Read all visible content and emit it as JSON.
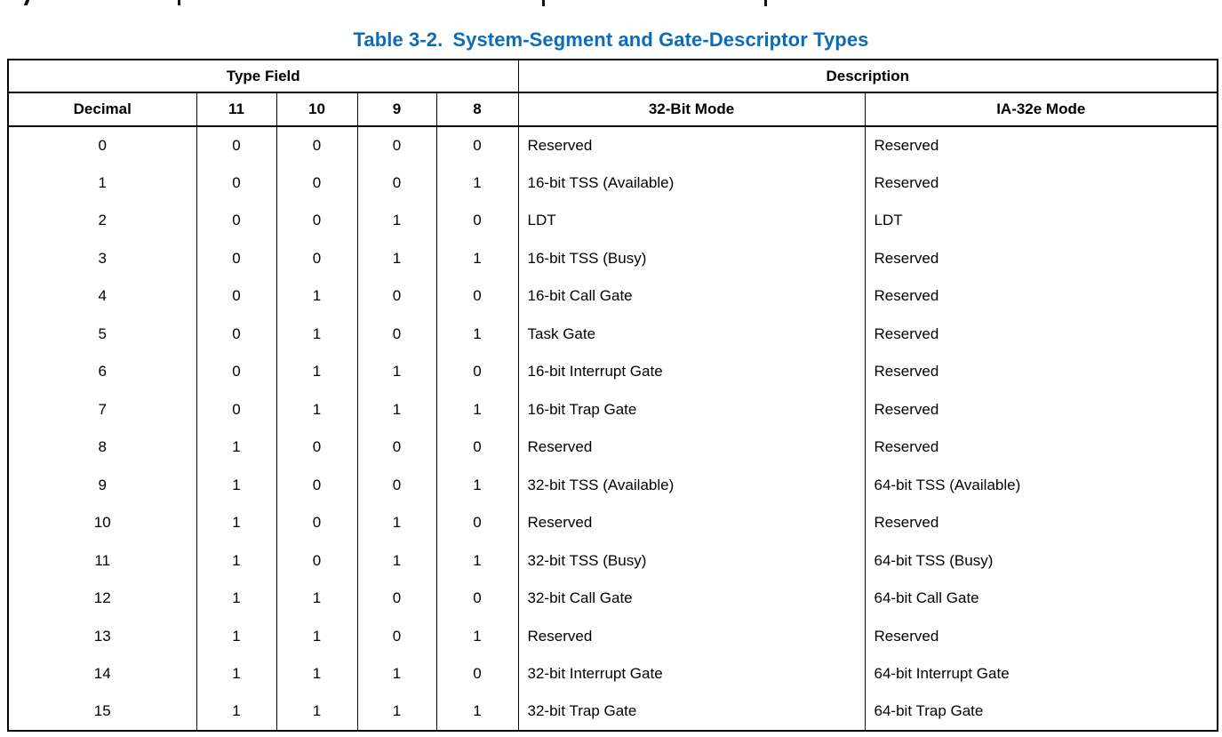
{
  "caption": {
    "label": "Table 3-2.",
    "title": "System-Segment and Gate-Descriptor Types"
  },
  "colors": {
    "caption_blue": "#0c6cb8",
    "text": "#000000",
    "border": "#000000"
  },
  "table": {
    "header_groups": [
      {
        "label": "Type Field",
        "span": 5
      },
      {
        "label": "Description",
        "span": 2
      }
    ],
    "columns": [
      "Decimal",
      "11",
      "10",
      "9",
      "8",
      "32-Bit Mode",
      "IA-32e Mode"
    ],
    "rows": [
      [
        "0",
        "0",
        "0",
        "0",
        "0",
        "Reserved",
        "Reserved"
      ],
      [
        "1",
        "0",
        "0",
        "0",
        "1",
        "16-bit TSS (Available)",
        "Reserved"
      ],
      [
        "2",
        "0",
        "0",
        "1",
        "0",
        "LDT",
        "LDT"
      ],
      [
        "3",
        "0",
        "0",
        "1",
        "1",
        "16-bit TSS (Busy)",
        "Reserved"
      ],
      [
        "4",
        "0",
        "1",
        "0",
        "0",
        "16-bit Call Gate",
        "Reserved"
      ],
      [
        "5",
        "0",
        "1",
        "0",
        "1",
        "Task Gate",
        "Reserved"
      ],
      [
        "6",
        "0",
        "1",
        "1",
        "0",
        "16-bit Interrupt Gate",
        "Reserved"
      ],
      [
        "7",
        "0",
        "1",
        "1",
        "1",
        "16-bit Trap Gate",
        "Reserved"
      ],
      [
        "8",
        "1",
        "0",
        "0",
        "0",
        "Reserved",
        "Reserved"
      ],
      [
        "9",
        "1",
        "0",
        "0",
        "1",
        "32-bit TSS (Available)",
        "64-bit TSS (Available)"
      ],
      [
        "10",
        "1",
        "0",
        "1",
        "0",
        "Reserved",
        "Reserved"
      ],
      [
        "11",
        "1",
        "0",
        "1",
        "1",
        "32-bit TSS (Busy)",
        "64-bit TSS (Busy)"
      ],
      [
        "12",
        "1",
        "1",
        "0",
        "0",
        "32-bit Call Gate",
        "64-bit Call Gate"
      ],
      [
        "13",
        "1",
        "1",
        "0",
        "1",
        "Reserved",
        "Reserved"
      ],
      [
        "14",
        "1",
        "1",
        "1",
        "0",
        "32-bit Interrupt Gate",
        "64-bit Interrupt Gate"
      ],
      [
        "15",
        "1",
        "1",
        "1",
        "1",
        "32-bit Trap Gate",
        "64-bit Trap Gate"
      ]
    ]
  }
}
